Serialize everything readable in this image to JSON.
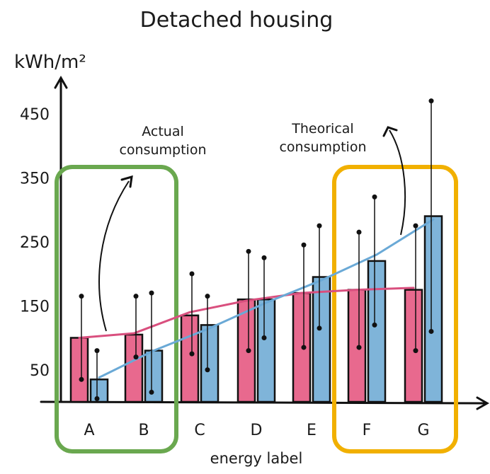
{
  "chart_data": {
    "type": "bar",
    "title": "Detached housing",
    "xlabel": "energy label",
    "ylabel": "kWh/m²",
    "yticks": [
      50,
      150,
      250,
      350,
      450
    ],
    "ylim": [
      0,
      480
    ],
    "categories": [
      "A",
      "B",
      "C",
      "D",
      "E",
      "F",
      "G"
    ],
    "series": [
      {
        "values": [
          100,
          105,
          135,
          160,
          170,
          175,
          175
        ],
        "error_low": [
          35,
          70,
          75,
          80,
          85,
          85,
          80
        ],
        "error_high": [
          165,
          165,
          200,
          235,
          245,
          265,
          275
        ],
        "color": "#e8698e"
      },
      {
        "values": [
          35,
          80,
          120,
          160,
          195,
          220,
          290
        ],
        "error_low": [
          5,
          15,
          50,
          100,
          115,
          120,
          110
        ],
        "error_high": [
          80,
          170,
          165,
          225,
          275,
          320,
          470
        ],
        "color": "#7fb4d9"
      }
    ],
    "trend_lines": [
      {
        "color": "#d94f7e",
        "values": [
          100,
          107,
          140,
          158,
          170,
          175,
          178
        ]
      },
      {
        "color": "#6aa9d6",
        "values": [
          38,
          80,
          115,
          155,
          190,
          230,
          285
        ]
      }
    ],
    "annotations": [
      {
        "text_lines": [
          "Actual",
          "consumption"
        ],
        "target": "B"
      },
      {
        "text_lines": [
          "Theorical",
          "consumption"
        ],
        "target": "G"
      }
    ],
    "highlight_groups": [
      {
        "categories": [
          "A",
          "B"
        ],
        "color": "#6aa84f"
      },
      {
        "categories": [
          "F",
          "G"
        ],
        "color": "#f1b000"
      }
    ],
    "grid": false,
    "legend": "none"
  }
}
